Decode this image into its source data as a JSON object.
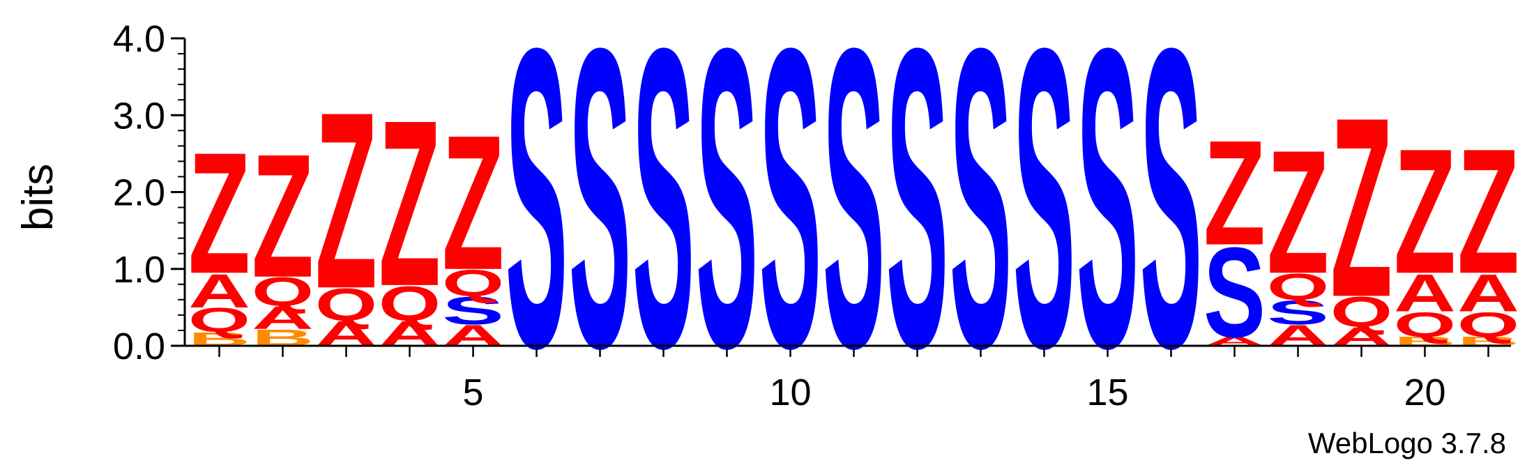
{
  "chart_data": {
    "type": "sequence-logo",
    "ylabel": "bits",
    "ylim": [
      0,
      4.0
    ],
    "yticks": [
      "0.0",
      "1.0",
      "2.0",
      "3.0",
      "4.0"
    ],
    "xticks": [
      {
        "position": 5,
        "label": "5"
      },
      {
        "position": 10,
        "label": "10"
      },
      {
        "position": 15,
        "label": "15"
      },
      {
        "position": 20,
        "label": "20"
      }
    ],
    "colors": {
      "Z": "#ff0000",
      "A": "#ff0000",
      "Q": "#ff0000",
      "S": "#0000ff",
      "B": "#ff8c00"
    },
    "positions": [
      {
        "pos": 1,
        "stack": [
          {
            "letter": "B",
            "bits": 0.18
          },
          {
            "letter": "Q",
            "bits": 0.32
          },
          {
            "letter": "A",
            "bits": 0.45
          },
          {
            "letter": "Z",
            "bits": 1.62
          }
        ]
      },
      {
        "pos": 2,
        "stack": [
          {
            "letter": "B",
            "bits": 0.22
          },
          {
            "letter": "A",
            "bits": 0.3
          },
          {
            "letter": "Q",
            "bits": 0.38
          },
          {
            "letter": "Z",
            "bits": 1.65
          }
        ]
      },
      {
        "pos": 3,
        "stack": [
          {
            "letter": "A",
            "bits": 0.33
          },
          {
            "letter": "Q",
            "bits": 0.43
          },
          {
            "letter": "Z",
            "bits": 2.36
          }
        ]
      },
      {
        "pos": 4,
        "stack": [
          {
            "letter": "A",
            "bits": 0.33
          },
          {
            "letter": "Q",
            "bits": 0.46
          },
          {
            "letter": "Z",
            "bits": 2.22
          }
        ]
      },
      {
        "pos": 5,
        "stack": [
          {
            "letter": "A",
            "bits": 0.28
          },
          {
            "letter": "S",
            "bits": 0.37
          },
          {
            "letter": "Q",
            "bits": 0.35
          },
          {
            "letter": "Z",
            "bits": 1.8
          }
        ]
      },
      {
        "pos": 6,
        "stack": [
          {
            "letter": "S",
            "bits": 4.0
          }
        ]
      },
      {
        "pos": 7,
        "stack": [
          {
            "letter": "S",
            "bits": 4.0
          }
        ]
      },
      {
        "pos": 8,
        "stack": [
          {
            "letter": "S",
            "bits": 4.0
          }
        ]
      },
      {
        "pos": 9,
        "stack": [
          {
            "letter": "S",
            "bits": 4.0
          }
        ]
      },
      {
        "pos": 10,
        "stack": [
          {
            "letter": "S",
            "bits": 4.0
          }
        ]
      },
      {
        "pos": 11,
        "stack": [
          {
            "letter": "S",
            "bits": 4.0
          }
        ]
      },
      {
        "pos": 12,
        "stack": [
          {
            "letter": "S",
            "bits": 4.0
          }
        ]
      },
      {
        "pos": 13,
        "stack": [
          {
            "letter": "S",
            "bits": 4.0
          }
        ]
      },
      {
        "pos": 14,
        "stack": [
          {
            "letter": "S",
            "bits": 4.0
          }
        ]
      },
      {
        "pos": 15,
        "stack": [
          {
            "letter": "S",
            "bits": 4.0
          }
        ]
      },
      {
        "pos": 16,
        "stack": [
          {
            "letter": "S",
            "bits": 4.0
          }
        ]
      },
      {
        "pos": 17,
        "stack": [
          {
            "letter": "A",
            "bits": 0.12
          },
          {
            "letter": "S",
            "bits": 1.2
          },
          {
            "letter": "Z",
            "bits": 1.4
          }
        ]
      },
      {
        "pos": 18,
        "stack": [
          {
            "letter": "A",
            "bits": 0.28
          },
          {
            "letter": "S",
            "bits": 0.32
          },
          {
            "letter": "Q",
            "bits": 0.35
          },
          {
            "letter": "Z",
            "bits": 1.65
          }
        ]
      },
      {
        "pos": 19,
        "stack": [
          {
            "letter": "A",
            "bits": 0.25
          },
          {
            "letter": "Q",
            "bits": 0.4
          },
          {
            "letter": "Z",
            "bits": 2.4
          }
        ]
      },
      {
        "pos": 20,
        "stack": [
          {
            "letter": "B",
            "bits": 0.12
          },
          {
            "letter": "Q",
            "bits": 0.33
          },
          {
            "letter": "A",
            "bits": 0.5
          },
          {
            "letter": "Z",
            "bits": 1.67
          }
        ]
      },
      {
        "pos": 21,
        "stack": [
          {
            "letter": "B",
            "bits": 0.12
          },
          {
            "letter": "Q",
            "bits": 0.33
          },
          {
            "letter": "A",
            "bits": 0.5
          },
          {
            "letter": "Z",
            "bits": 1.67
          }
        ]
      }
    ]
  },
  "footer": {
    "credit": "WebLogo 3.7.8"
  }
}
